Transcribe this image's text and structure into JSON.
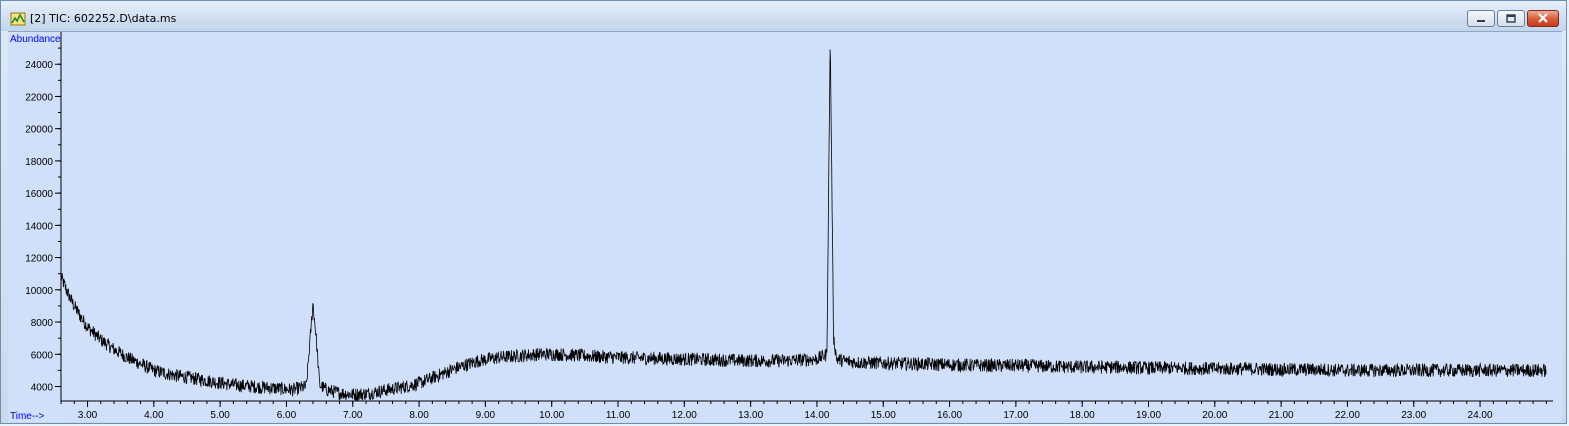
{
  "window": {
    "title": "[2] TIC: 602252.D\\data.ms",
    "controls": [
      "minimize",
      "restore",
      "close"
    ],
    "app_icon": "chromatogram-app-icon"
  },
  "colors": {
    "plot_bg": "#d0e0fb",
    "trace": "#000000",
    "axis_label": "#0000ff",
    "tick_text": "#000000"
  },
  "chart_data": {
    "type": "line",
    "title": "",
    "ylabel": "Abundance",
    "xlabel": "Time-->",
    "xlim": [
      2.6,
      25.1
    ],
    "ylim": [
      3100,
      26000
    ],
    "x_ticks": [
      "3.00",
      "4.00",
      "5.00",
      "6.00",
      "7.00",
      "8.00",
      "9.00",
      "10.00",
      "11.00",
      "12.00",
      "13.00",
      "14.00",
      "15.00",
      "16.00",
      "17.00",
      "18.00",
      "19.00",
      "20.00",
      "21.00",
      "22.00",
      "23.00",
      "24.00"
    ],
    "y_ticks": [
      "4000",
      "6000",
      "8000",
      "10000",
      "12000",
      "14000",
      "16000",
      "18000",
      "20000",
      "22000",
      "24000"
    ],
    "grid": false,
    "series": [
      {
        "x": [
          2.6,
          2.7,
          2.8,
          2.9,
          3.0,
          3.2,
          3.4,
          3.6,
          3.8,
          4.0,
          4.3,
          4.6,
          4.9,
          5.2,
          5.5,
          5.8,
          6.1,
          6.3,
          6.4,
          6.45,
          6.5,
          6.6,
          6.8,
          7.0,
          7.2,
          7.4,
          7.6,
          7.8,
          8.0,
          8.3,
          8.6,
          8.9,
          9.2,
          9.5,
          9.8,
          10.1,
          10.5,
          11.0,
          11.5,
          12.0,
          12.5,
          13.0,
          13.5,
          14.0,
          14.15,
          14.2,
          14.25,
          14.3,
          14.4,
          14.6,
          15.0,
          15.5,
          16.0,
          16.5,
          17.0,
          17.5,
          18.0,
          18.5,
          19.0,
          19.5,
          20.0,
          20.5,
          21.0,
          21.5,
          22.0,
          22.5,
          23.0,
          23.5,
          24.0,
          24.5,
          25.0
        ],
        "y": [
          10800,
          9800,
          9000,
          8300,
          7700,
          6900,
          6300,
          5800,
          5400,
          5000,
          4700,
          4500,
          4300,
          4100,
          4000,
          3900,
          3800,
          4000,
          9200,
          7000,
          4100,
          3800,
          3600,
          3500,
          3550,
          3700,
          3850,
          4000,
          4200,
          4700,
          5200,
          5600,
          5800,
          5900,
          6000,
          6000,
          5900,
          5800,
          5750,
          5700,
          5650,
          5600,
          5600,
          5700,
          6000,
          25700,
          7000,
          5700,
          5600,
          5500,
          5450,
          5400,
          5350,
          5300,
          5300,
          5250,
          5200,
          5200,
          5150,
          5150,
          5100,
          5100,
          5050,
          5050,
          5000,
          5000,
          5000,
          5000,
          5000,
          5000,
          5000
        ]
      }
    ]
  }
}
